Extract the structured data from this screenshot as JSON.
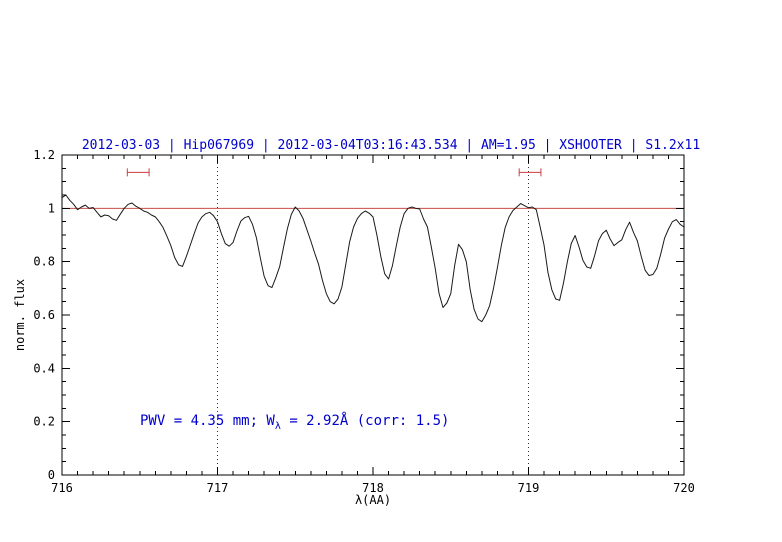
{
  "chart_data": {
    "type": "line",
    "title": "2012-03-03 | Hip067969 | 2012-03-04T03:16:43.534 | AM=1.95 | XSHOOTER | S1.2x11",
    "xlabel": "λ(AA)",
    "ylabel": "norm. flux",
    "xlim": [
      716,
      720
    ],
    "ylim": [
      0,
      1.2
    ],
    "xticks": [
      716,
      717,
      718,
      719,
      720
    ],
    "yticks": [
      0,
      0.2,
      0.4,
      0.6,
      0.8,
      1,
      1.2
    ],
    "grid": false,
    "legend": "none",
    "colors": {
      "axis": "#000000",
      "spectrum": "#1a1a1a",
      "continuum": "#cc4c44",
      "marker": "#cc3d3d",
      "text_blue": "#0000cd",
      "dotted": "#333333"
    },
    "continuum_line": {
      "y": 1.0
    },
    "dotted_vlines": [
      717,
      719
    ],
    "range_markers": [
      {
        "x1": 716.42,
        "x2": 716.56,
        "y": 1.135
      },
      {
        "x1": 718.94,
        "x2": 719.08,
        "y": 1.135
      }
    ],
    "annotation": {
      "text": "PWV = 4.35 mm; W_λ = 2.92Å (corr: 1.5)",
      "prefix": "PWV = 4.35 mm; W",
      "sub": "λ",
      "suffix": " = 2.92Å (corr: 1.5)",
      "x": 716.5,
      "y": 0.2
    },
    "series": [
      {
        "name": "telluric-spectrum",
        "x_start": 716.0,
        "x_step": 0.025,
        "y": [
          1.04,
          1.05,
          1.03,
          1.015,
          0.995,
          1.005,
          1.012,
          1.0,
          1.003,
          0.985,
          0.968,
          0.975,
          0.972,
          0.96,
          0.955,
          0.978,
          1.0,
          1.015,
          1.02,
          1.008,
          1.0,
          0.99,
          0.985,
          0.975,
          0.968,
          0.95,
          0.928,
          0.895,
          0.86,
          0.815,
          0.788,
          0.782,
          0.82,
          0.862,
          0.905,
          0.945,
          0.968,
          0.98,
          0.985,
          0.972,
          0.95,
          0.905,
          0.868,
          0.858,
          0.872,
          0.915,
          0.952,
          0.965,
          0.97,
          0.94,
          0.89,
          0.815,
          0.745,
          0.71,
          0.703,
          0.74,
          0.782,
          0.855,
          0.925,
          0.978,
          1.005,
          0.99,
          0.962,
          0.92,
          0.878,
          0.832,
          0.79,
          0.73,
          0.68,
          0.65,
          0.642,
          0.66,
          0.705,
          0.79,
          0.875,
          0.93,
          0.962,
          0.98,
          0.99,
          0.982,
          0.968,
          0.9,
          0.82,
          0.755,
          0.735,
          0.785,
          0.86,
          0.93,
          0.98,
          1.0,
          1.005,
          1.0,
          0.998,
          0.96,
          0.93,
          0.855,
          0.775,
          0.68,
          0.628,
          0.645,
          0.68,
          0.785,
          0.865,
          0.845,
          0.8,
          0.695,
          0.622,
          0.585,
          0.575,
          0.6,
          0.635,
          0.7,
          0.778,
          0.86,
          0.928,
          0.968,
          0.992,
          1.005,
          1.018,
          1.01,
          1.002,
          1.005,
          0.995,
          0.93,
          0.862,
          0.76,
          0.695,
          0.66,
          0.655,
          0.72,
          0.8,
          0.868,
          0.898,
          0.855,
          0.805,
          0.78,
          0.775,
          0.822,
          0.878,
          0.905,
          0.918,
          0.885,
          0.86,
          0.872,
          0.882,
          0.92,
          0.948,
          0.91,
          0.878,
          0.82,
          0.768,
          0.748,
          0.752,
          0.775,
          0.828,
          0.888,
          0.922,
          0.95,
          0.958,
          0.94,
          0.93
        ]
      }
    ]
  }
}
